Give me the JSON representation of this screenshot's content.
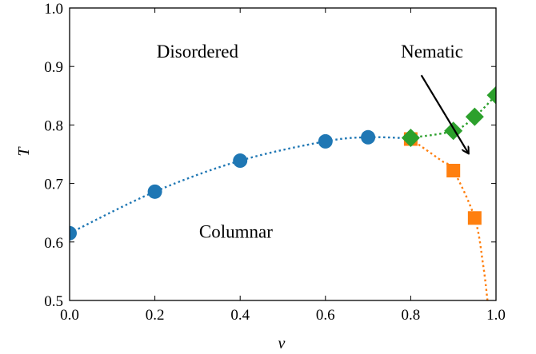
{
  "chart_data": {
    "type": "scatter",
    "xlabel": "v",
    "ylabel": "T",
    "xlim": [
      0.0,
      1.0
    ],
    "ylim": [
      0.5,
      1.0
    ],
    "grid": false,
    "x_ticks": [
      "0.0",
      "0.2",
      "0.4",
      "0.6",
      "0.8",
      "1.0"
    ],
    "y_ticks": [
      "0.5",
      "0.6",
      "0.7",
      "0.8",
      "0.9",
      "1.0"
    ],
    "series": [
      {
        "marker": "circle",
        "color": "#1f77b4",
        "line": "dotted",
        "points": [
          {
            "x": 0.0,
            "y": 0.615
          },
          {
            "x": 0.2,
            "y": 0.686
          },
          {
            "x": 0.4,
            "y": 0.739
          },
          {
            "x": 0.6,
            "y": 0.772
          },
          {
            "x": 0.7,
            "y": 0.779
          }
        ],
        "curve": [
          {
            "x": 0.0,
            "y": 0.615
          },
          {
            "x": 0.2,
            "y": 0.686
          },
          {
            "x": 0.4,
            "y": 0.739
          },
          {
            "x": 0.6,
            "y": 0.772
          },
          {
            "x": 0.7,
            "y": 0.779
          },
          {
            "x": 0.8,
            "y": 0.777
          }
        ]
      },
      {
        "marker": "square",
        "color": "#ff7f0e",
        "line": "dotted",
        "points": [
          {
            "x": 0.8,
            "y": 0.776
          },
          {
            "x": 0.9,
            "y": 0.722
          },
          {
            "x": 0.95,
            "y": 0.641
          }
        ],
        "curve": [
          {
            "x": 0.8,
            "y": 0.776
          },
          {
            "x": 0.87,
            "y": 0.74
          },
          {
            "x": 0.9,
            "y": 0.722
          },
          {
            "x": 0.95,
            "y": 0.641
          },
          {
            "x": 0.97,
            "y": 0.56
          },
          {
            "x": 0.98,
            "y": 0.5
          }
        ]
      },
      {
        "marker": "diamond",
        "color": "#2ca02c",
        "line": "dotted",
        "points": [
          {
            "x": 0.8,
            "y": 0.778
          },
          {
            "x": 0.9,
            "y": 0.79
          },
          {
            "x": 0.95,
            "y": 0.814
          },
          {
            "x": 1.0,
            "y": 0.851
          }
        ],
        "curve": [
          {
            "x": 0.8,
            "y": 0.778
          },
          {
            "x": 0.9,
            "y": 0.79
          },
          {
            "x": 0.95,
            "y": 0.814
          },
          {
            "x": 1.0,
            "y": 0.851
          }
        ]
      }
    ],
    "annotations": [
      {
        "text": "Disordered",
        "x": 0.3,
        "y": 0.915
      },
      {
        "text": "Nematic",
        "x": 0.85,
        "y": 0.915
      },
      {
        "text": "Columnar",
        "x": 0.39,
        "y": 0.607
      }
    ],
    "arrow": {
      "from": {
        "x": 0.825,
        "y": 0.885
      },
      "to": {
        "x": 0.935,
        "y": 0.752
      }
    }
  }
}
